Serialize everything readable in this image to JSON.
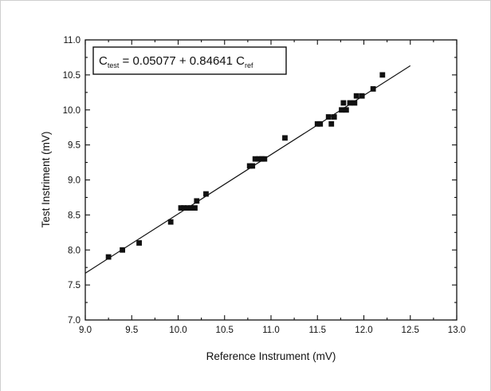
{
  "chart_data": {
    "type": "scatter",
    "title": "",
    "xlabel": "Reference Instrument (mV)",
    "ylabel": "Test Instriment (mV)",
    "xlim": [
      9.0,
      13.0
    ],
    "ylim": [
      7.0,
      11.0
    ],
    "xticks": [
      "9.0",
      "9.5",
      "10.0",
      "10.5",
      "11.0",
      "11.5",
      "12.0",
      "12.5",
      "13.0"
    ],
    "yticks": [
      "7.0",
      "7.5",
      "8.0",
      "8.5",
      "9.0",
      "9.5",
      "10.0",
      "10.5",
      "11.0"
    ],
    "grid": false,
    "legend": "none",
    "annotation": {
      "c1": "C",
      "sub1": "test",
      "mid": " = 0.05077 + 0.84641 C",
      "sub2": "ref",
      "intercept": 0.05077,
      "slope": 0.84641
    },
    "fit_range": [
      9.0,
      12.5
    ],
    "series": [
      {
        "x": [
          9.25,
          9.4,
          9.58,
          9.92,
          10.03,
          10.06,
          10.1,
          10.14,
          10.18,
          10.2,
          10.3,
          10.77,
          10.8,
          10.83,
          10.87,
          10.9,
          10.93,
          11.15,
          11.5,
          11.53,
          11.62,
          11.65,
          11.68,
          11.76,
          11.78,
          11.81,
          11.85,
          11.9,
          11.92,
          11.98,
          12.1,
          12.2
        ],
        "y": [
          7.9,
          8.0,
          8.1,
          8.4,
          8.6,
          8.6,
          8.6,
          8.6,
          8.6,
          8.7,
          8.8,
          9.2,
          9.2,
          9.3,
          9.3,
          9.3,
          9.3,
          9.6,
          9.8,
          9.8,
          9.9,
          9.8,
          9.9,
          10.0,
          10.1,
          10.0,
          10.1,
          10.1,
          10.2,
          10.2,
          10.3,
          10.5
        ]
      }
    ]
  }
}
